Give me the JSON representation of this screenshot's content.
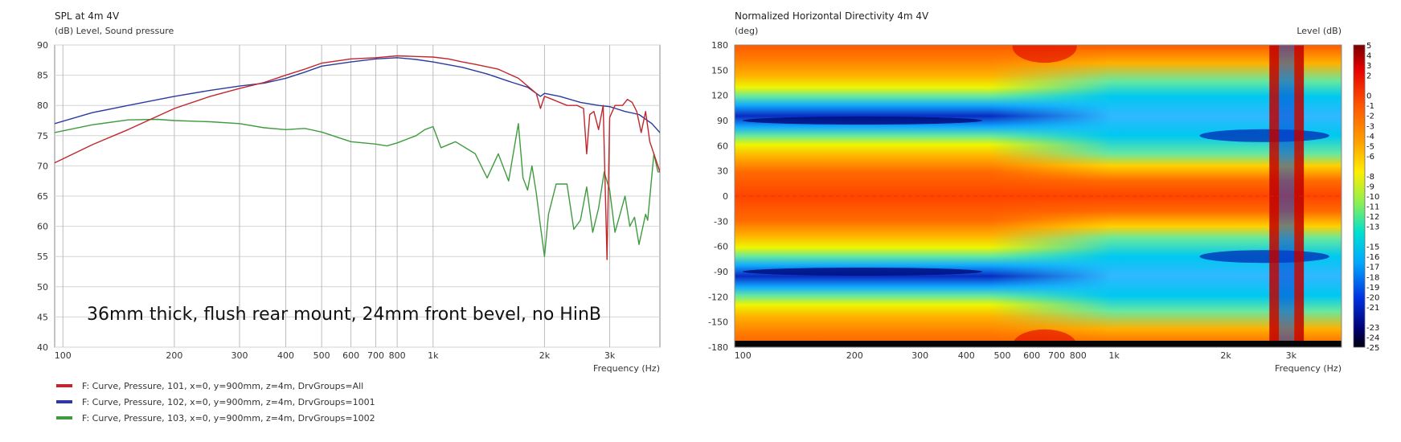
{
  "chart_data": [
    {
      "type": "line",
      "title": "SPL at 4m 4V",
      "subtitle": "(dB)  Level, Sound pressure",
      "xlabel": "Frequency  (Hz)",
      "ylabel": "(dB)  Level, Sound pressure",
      "x_scale": "log",
      "xlim": [
        95,
        4100
      ],
      "ylim": [
        40,
        90
      ],
      "grid": true,
      "x_ticks": [
        {
          "v": 100,
          "label": "100"
        },
        {
          "v": 200,
          "label": "200"
        },
        {
          "v": 300,
          "label": "300"
        },
        {
          "v": 400,
          "label": "400"
        },
        {
          "v": 500,
          "label": "500"
        },
        {
          "v": 600,
          "label": "600"
        },
        {
          "v": 700,
          "label": "700"
        },
        {
          "v": 800,
          "label": "800"
        },
        {
          "v": 1000,
          "label": "1k"
        },
        {
          "v": 2000,
          "label": "2k"
        },
        {
          "v": 3000,
          "label": "3k"
        }
      ],
      "y_ticks": [
        40,
        45,
        50,
        55,
        60,
        65,
        70,
        75,
        80,
        85,
        90
      ],
      "annotation": "36mm thick, flush rear mount, 24mm front bevel, no HinB",
      "legend_position": "bottom-left",
      "series": [
        {
          "name": "F: Curve, Pressure, 101, x=0, y=900mm, z=4m, DrvGroups=All",
          "color": "#c0272d",
          "points": [
            [
              95,
              70.5
            ],
            [
              120,
              73.5
            ],
            [
              150,
              76
            ],
            [
              200,
              79.5
            ],
            [
              250,
              81.5
            ],
            [
              300,
              82.8
            ],
            [
              350,
              83.8
            ],
            [
              400,
              85
            ],
            [
              450,
              86
            ],
            [
              500,
              87
            ],
            [
              600,
              87.7
            ],
            [
              700,
              87.9
            ],
            [
              800,
              88.2
            ],
            [
              900,
              88.1
            ],
            [
              1000,
              88
            ],
            [
              1100,
              87.7
            ],
            [
              1200,
              87.2
            ],
            [
              1300,
              86.8
            ],
            [
              1500,
              86
            ],
            [
              1700,
              84.5
            ],
            [
              1900,
              82
            ],
            [
              1950,
              79.5
            ],
            [
              2000,
              81.5
            ],
            [
              2100,
              81
            ],
            [
              2300,
              80
            ],
            [
              2450,
              80
            ],
            [
              2550,
              79.5
            ],
            [
              2600,
              72
            ],
            [
              2650,
              78.5
            ],
            [
              2720,
              79
            ],
            [
              2800,
              76
            ],
            [
              2880,
              80
            ],
            [
              2950,
              54.5
            ],
            [
              3000,
              78
            ],
            [
              3100,
              80
            ],
            [
              3250,
              80
            ],
            [
              3350,
              81
            ],
            [
              3450,
              80.5
            ],
            [
              3550,
              79
            ],
            [
              3650,
              75.5
            ],
            [
              3750,
              79
            ],
            [
              3850,
              74
            ],
            [
              3950,
              72
            ],
            [
              4050,
              70
            ],
            [
              4100,
              69
            ]
          ]
        },
        {
          "name": "F: Curve, Pressure, 102, x=0, y=900mm, z=4m, DrvGroups=1001",
          "color": "#2b3a9e",
          "points": [
            [
              95,
              77
            ],
            [
              120,
              78.8
            ],
            [
              150,
              80
            ],
            [
              200,
              81.5
            ],
            [
              250,
              82.5
            ],
            [
              300,
              83.2
            ],
            [
              350,
              83.7
            ],
            [
              400,
              84.5
            ],
            [
              450,
              85.5
            ],
            [
              500,
              86.5
            ],
            [
              600,
              87.2
            ],
            [
              700,
              87.7
            ],
            [
              800,
              87.9
            ],
            [
              900,
              87.6
            ],
            [
              1000,
              87.2
            ],
            [
              1200,
              86.3
            ],
            [
              1400,
              85.2
            ],
            [
              1600,
              84
            ],
            [
              1800,
              83
            ],
            [
              1950,
              81.5
            ],
            [
              2000,
              82
            ],
            [
              2200,
              81.5
            ],
            [
              2500,
              80.5
            ],
            [
              2800,
              80
            ],
            [
              3000,
              79.8
            ],
            [
              3300,
              79
            ],
            [
              3600,
              78.5
            ],
            [
              3900,
              77
            ],
            [
              4100,
              75.5
            ]
          ]
        },
        {
          "name": "F: Curve, Pressure, 103, x=0, y=900mm, z=4m, DrvGroups=1002",
          "color": "#3f9b3f",
          "points": [
            [
              95,
              75.5
            ],
            [
              120,
              76.8
            ],
            [
              150,
              77.6
            ],
            [
              180,
              77.7
            ],
            [
              200,
              77.5
            ],
            [
              250,
              77.3
            ],
            [
              300,
              77
            ],
            [
              350,
              76.3
            ],
            [
              400,
              76
            ],
            [
              450,
              76.2
            ],
            [
              500,
              75.6
            ],
            [
              600,
              74
            ],
            [
              700,
              73.6
            ],
            [
              750,
              73.3
            ],
            [
              800,
              73.8
            ],
            [
              900,
              75
            ],
            [
              950,
              76
            ],
            [
              1000,
              76.5
            ],
            [
              1050,
              73
            ],
            [
              1150,
              74
            ],
            [
              1300,
              72
            ],
            [
              1400,
              68
            ],
            [
              1500,
              72
            ],
            [
              1600,
              67.5
            ],
            [
              1700,
              77
            ],
            [
              1750,
              68
            ],
            [
              1800,
              66
            ],
            [
              1850,
              70
            ],
            [
              1900,
              65.5
            ],
            [
              1950,
              60
            ],
            [
              2000,
              55
            ],
            [
              2050,
              62
            ],
            [
              2150,
              67
            ],
            [
              2300,
              67
            ],
            [
              2400,
              59.5
            ],
            [
              2500,
              61
            ],
            [
              2600,
              66.5
            ],
            [
              2700,
              59
            ],
            [
              2800,
              63
            ],
            [
              2900,
              69
            ],
            [
              3000,
              66
            ],
            [
              3100,
              59
            ],
            [
              3200,
              62
            ],
            [
              3300,
              65
            ],
            [
              3400,
              60
            ],
            [
              3500,
              61.5
            ],
            [
              3600,
              57
            ],
            [
              3750,
              62
            ],
            [
              3800,
              61
            ],
            [
              3950,
              72
            ],
            [
              4050,
              69
            ],
            [
              4100,
              69
            ]
          ]
        }
      ]
    },
    {
      "type": "heatmap",
      "title": "Normalized Horizontal Directivity 4m 4V",
      "ylabel": "(deg)",
      "xlabel": "Frequency  (Hz)",
      "colorbar_label": "Level  (dB)",
      "x_scale": "log",
      "xlim": [
        95,
        4100
      ],
      "ylim": [
        -180,
        180
      ],
      "x_ticks": [
        {
          "v": 100,
          "label": "100"
        },
        {
          "v": 200,
          "label": "200"
        },
        {
          "v": 300,
          "label": "300"
        },
        {
          "v": 400,
          "label": "400"
        },
        {
          "v": 500,
          "label": "500"
        },
        {
          "v": 600,
          "label": "600"
        },
        {
          "v": 700,
          "label": "700"
        },
        {
          "v": 800,
          "label": "800"
        },
        {
          "v": 1000,
          "label": "1k"
        },
        {
          "v": 2000,
          "label": "2k"
        },
        {
          "v": 3000,
          "label": "3k"
        }
      ],
      "y_ticks": [
        180,
        150,
        120,
        90,
        60,
        30,
        0,
        -30,
        -60,
        -90,
        -120,
        -150,
        -180
      ],
      "colorbar_range": [
        -25,
        5
      ],
      "colorbar_ticks": [
        "5",
        "4",
        "3",
        "2",
        "0",
        "-1",
        "-2",
        "-3",
        "-4",
        "-5",
        "-6",
        "-8",
        "-9",
        "-10",
        "-11",
        "-12",
        "-13",
        "-15",
        "-16",
        "-17",
        "-18",
        "-19",
        "-20",
        "-21",
        "-23",
        "-24",
        "-25"
      ],
      "features": {
        "nulls_deg": [
          90,
          -90
        ],
        "null_band_end_hz": 380,
        "vertical_lobes_hz": [
          2700,
          3150
        ],
        "blue_patches_hz": [
          1700,
          3800
        ]
      }
    }
  ]
}
